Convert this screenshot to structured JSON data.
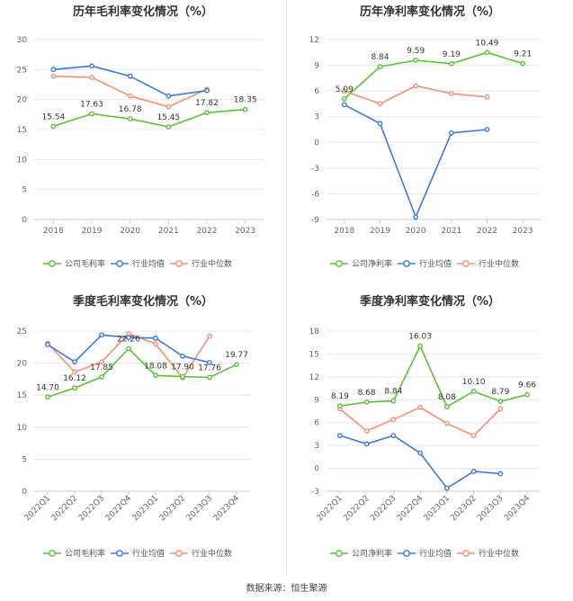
{
  "source_text": "数据来源：恒生聚源",
  "legend_labels": {
    "company_margin": "公司毛利率",
    "company_net": "公司净利率",
    "industry_avg": "行业均值",
    "industry_median": "行业中位数"
  },
  "colors": {
    "company": "#5ac136",
    "industry_avg": "#3b78e7",
    "industry_median": "#f49173",
    "grid": "#e6e6e6",
    "axis": "#cccccc"
  },
  "chart_data": [
    {
      "title": "历年毛利率变化情况（%）",
      "type": "line",
      "x": [
        "2018",
        "2019",
        "2020",
        "2021",
        "2022",
        "2023"
      ],
      "ylim": [
        0,
        30
      ],
      "yticks": [
        0,
        5,
        10,
        15,
        20,
        25,
        30
      ],
      "grid": true,
      "legend_position": "bottom",
      "series": [
        {
          "name": "公司毛利率",
          "values": [
            15.54,
            17.63,
            16.78,
            15.45,
            17.82,
            18.35
          ],
          "labels": [
            "15.54",
            "17.63",
            "16.78",
            "15.45",
            "17.82",
            "18.35"
          ]
        },
        {
          "name": "行业均值",
          "values": [
            25.0,
            25.6,
            23.9,
            20.6,
            21.5,
            null
          ]
        },
        {
          "name": "行业中位数",
          "values": [
            23.9,
            23.7,
            20.6,
            18.8,
            21.7,
            null
          ]
        }
      ]
    },
    {
      "title": "历年净利率变化情况（%）",
      "type": "line",
      "x": [
        "2018",
        "2019",
        "2020",
        "2021",
        "2022",
        "2023"
      ],
      "ylim": [
        -9,
        12
      ],
      "yticks": [
        -9,
        -6,
        -3,
        0,
        3,
        6,
        9,
        12
      ],
      "grid": true,
      "legend_position": "bottom",
      "series": [
        {
          "name": "公司净利率",
          "values": [
            5.09,
            8.84,
            9.59,
            9.19,
            10.49,
            9.21
          ],
          "labels": [
            "5.09",
            "8.84",
            "9.59",
            "9.19",
            "10.49",
            "9.21"
          ]
        },
        {
          "name": "行业均值",
          "values": [
            4.4,
            2.2,
            -8.7,
            1.1,
            1.5,
            null
          ]
        },
        {
          "name": "行业中位数",
          "values": [
            6.0,
            4.5,
            6.6,
            5.7,
            5.3,
            null
          ]
        }
      ]
    },
    {
      "title": "季度毛利率变化情况（%）",
      "type": "line",
      "x": [
        "2022Q1",
        "2022Q2",
        "2022Q3",
        "2022Q4",
        "2023Q1",
        "2023Q2",
        "2023Q3",
        "2023Q4"
      ],
      "ylim": [
        0,
        25
      ],
      "yticks": [
        0,
        5,
        10,
        15,
        20,
        25
      ],
      "grid": true,
      "legend_position": "bottom",
      "series": [
        {
          "name": "公司毛利率",
          "values": [
            14.7,
            16.12,
            17.85,
            22.26,
            18.08,
            17.9,
            17.76,
            19.77
          ],
          "labels": [
            "14.70",
            "16.12",
            "17.85",
            "22.26",
            "18.08",
            "17.90",
            "17.76",
            "19.77"
          ]
        },
        {
          "name": "行业均值",
          "values": [
            22.9,
            20.2,
            24.4,
            24.0,
            23.9,
            21.1,
            20.1,
            null
          ]
        },
        {
          "name": "行业中位数",
          "values": [
            23.1,
            18.6,
            20.2,
            24.6,
            23.0,
            17.7,
            24.2,
            null
          ]
        }
      ]
    },
    {
      "title": "季度净利率变化情况（%）",
      "type": "line",
      "x": [
        "2022Q1",
        "2022Q2",
        "2022Q3",
        "2022Q4",
        "2023Q1",
        "2023Q2",
        "2023Q3",
        "2023Q4"
      ],
      "ylim": [
        -3,
        18
      ],
      "yticks": [
        -3,
        0,
        3,
        6,
        9,
        12,
        15,
        18
      ],
      "grid": true,
      "legend_position": "bottom",
      "series": [
        {
          "name": "公司净利率",
          "values": [
            8.19,
            8.68,
            8.84,
            16.03,
            8.08,
            10.1,
            8.79,
            9.66
          ],
          "labels": [
            "8.19",
            "8.68",
            "8.84",
            "16.03",
            "8.08",
            "10.10",
            "8.79",
            "9.66"
          ]
        },
        {
          "name": "行业均值",
          "values": [
            4.3,
            3.2,
            4.3,
            2.0,
            -2.6,
            -0.4,
            -0.7,
            null
          ]
        },
        {
          "name": "行业中位数",
          "values": [
            7.8,
            4.9,
            6.4,
            8.0,
            5.9,
            4.3,
            7.8,
            null
          ]
        }
      ]
    }
  ]
}
